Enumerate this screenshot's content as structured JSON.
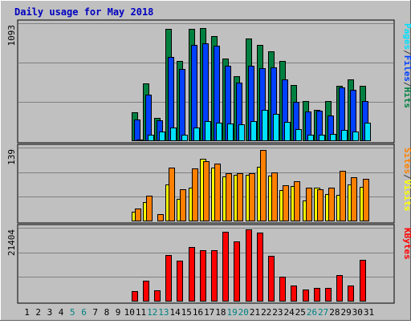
{
  "chart_data": {
    "type": "bar",
    "title": "Daily usage for May 2018",
    "categories": [
      "1",
      "2",
      "3",
      "4",
      "5",
      "6",
      "7",
      "8",
      "9",
      "10",
      "11",
      "12",
      "13",
      "14",
      "15",
      "16",
      "17",
      "18",
      "19",
      "20",
      "21",
      "22",
      "23",
      "24",
      "25",
      "26",
      "27",
      "28",
      "29",
      "30",
      "31"
    ],
    "weekend_days": [
      "5",
      "6",
      "12",
      "13",
      "19",
      "20",
      "26",
      "27"
    ],
    "panels": [
      {
        "name": "pages-files-hits",
        "ymax_label": "1093",
        "ymax": 1093,
        "legend": [
          {
            "text": "Pages",
            "color": "#00e0ff"
          },
          {
            "text": "/",
            "color": "#404040"
          },
          {
            "text": "Files",
            "color": "#0040ff"
          },
          {
            "text": "/",
            "color": "#404040"
          },
          {
            "text": "Hits",
            "color": "#008040"
          }
        ],
        "series": [
          {
            "name": "Hits",
            "color": "#008040",
            "values": [
              0,
              0,
              0,
              0,
              0,
              0,
              0,
              0,
              0,
              0,
              265,
              536,
              218,
              1038,
              746,
              1038,
              1051,
              975,
              766,
              603,
              951,
              889,
              835,
              741,
              519,
              371,
              290,
              369,
              513,
              573,
              515
            ]
          },
          {
            "name": "Files",
            "color": "#0040ff",
            "values": [
              0,
              0,
              0,
              0,
              0,
              0,
              0,
              0,
              0,
              0,
              198,
              431,
              194,
              778,
              667,
              895,
              910,
              885,
              701,
              542,
              699,
              679,
              687,
              574,
              367,
              275,
              285,
              240,
              500,
              474,
              374
            ]
          },
          {
            "name": "Pages",
            "color": "#00e0ff",
            "values": [
              0,
              0,
              0,
              0,
              0,
              0,
              0,
              0,
              0,
              0,
              18,
              60,
              90,
              124,
              63,
              128,
              187,
              170,
              165,
              153,
              183,
              290,
              256,
              180,
              111,
              63,
              63,
              68,
              102,
              91,
              174
            ]
          }
        ]
      },
      {
        "name": "visits-sites",
        "ymax_label": "139",
        "ymax": 139,
        "legend": [
          {
            "text": "Sites",
            "color": "#ff8000"
          },
          {
            "text": "/",
            "color": "#404040"
          },
          {
            "text": "Visits",
            "color": "#ffff00"
          }
        ],
        "series": [
          {
            "name": "Visits",
            "color": "#ffff00",
            "values": [
              0,
              0,
              0,
              0,
              0,
              0,
              0,
              0,
              0,
              0,
              18,
              37,
              0,
              70,
              42,
              64,
              118,
              101,
              84,
              87,
              88,
              103,
              86,
              59,
              67,
              40,
              64,
              51,
              50,
              70,
              65
            ]
          },
          {
            "name": "Sites",
            "color": "#ff8000",
            "values": [
              0,
              0,
              0,
              0,
              0,
              0,
              0,
              0,
              0,
              0,
              24,
              48,
              14,
              101,
              61,
              99,
              114,
              109,
              90,
              91,
              90,
              135,
              92,
              68,
              75,
              63,
              61,
              63,
              95,
              83,
              80
            ]
          }
        ]
      },
      {
        "name": "kbytes",
        "ymax_label": "21404",
        "ymax": 21404,
        "legend": [
          {
            "text": "KBytes",
            "color": "#ff0000"
          }
        ],
        "series": [
          {
            "name": "KBytes",
            "color": "#ff0000",
            "values": [
              0,
              0,
              0,
              0,
              0,
              0,
              0,
              0,
              0,
              0,
              2939,
              6118,
              3169,
              13418,
              11900,
              15850,
              14850,
              14900,
              20160,
              17400,
              21000,
              19900,
              13200,
              7270,
              4630,
              3410,
              4050,
              4040,
              7770,
              4730,
              12170
            ]
          }
        ]
      }
    ]
  }
}
